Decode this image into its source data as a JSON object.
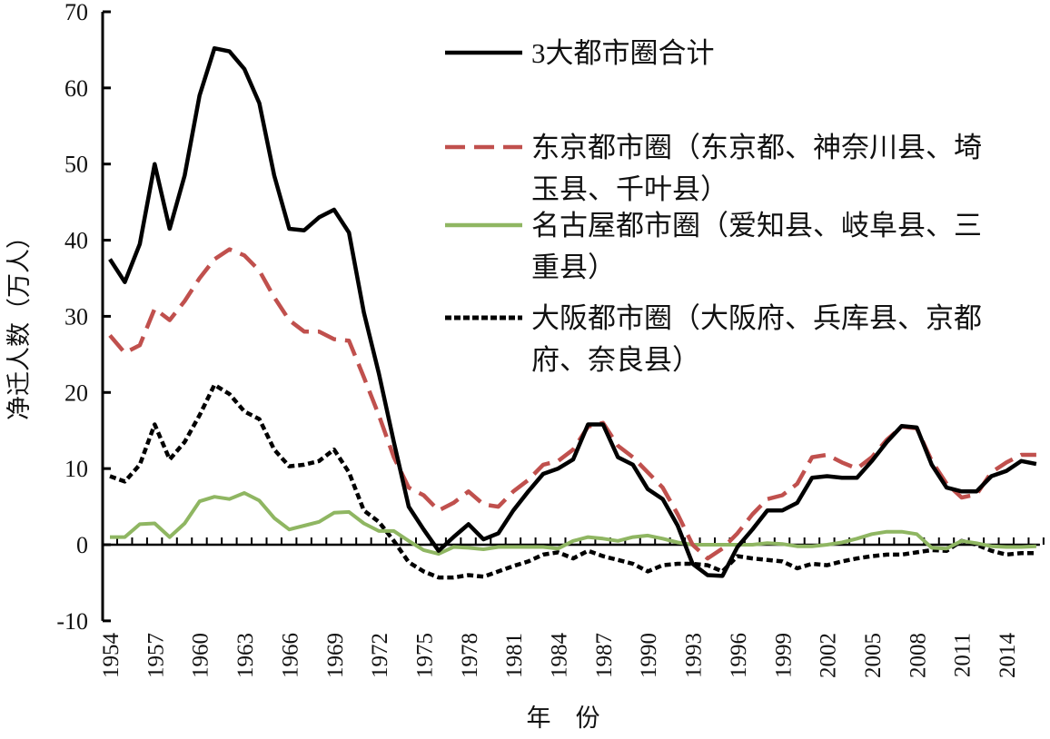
{
  "chart_data": {
    "type": "line",
    "xlabel": "年　份",
    "ylabel": "净迁人数（万人）",
    "ylim": [
      -10,
      70
    ],
    "yticks": [
      -10,
      0,
      10,
      20,
      30,
      40,
      50,
      60,
      70
    ],
    "ytick_labels": [
      "-10",
      "0",
      "10",
      "20",
      "30",
      "40",
      "50",
      "60",
      "70"
    ],
    "xlim": [
      1954,
      2016
    ],
    "xtick_labels": [
      "1954",
      "1957",
      "1960",
      "1963",
      "1966",
      "1969",
      "1972",
      "1975",
      "1978",
      "1981",
      "1984",
      "1987",
      "1990",
      "1993",
      "1996",
      "1999",
      "2002",
      "2005",
      "2008",
      "2011",
      "2014"
    ],
    "grid": false,
    "legend_position": "top-right",
    "x_start": 1954,
    "series": [
      {
        "name": "3大都市圈合计",
        "color": "#000000",
        "style": "solid",
        "values": [
          37.5,
          34.5,
          39.5,
          50,
          41.5,
          48.5,
          59,
          65.2,
          64.8,
          62.5,
          58,
          48.5,
          41.5,
          41.3,
          43,
          44,
          41,
          30.5,
          22.5,
          13.5,
          5,
          2,
          -0.8,
          1,
          2.7,
          0.7,
          1.5,
          4.5,
          7,
          9.3,
          10,
          11.2,
          15.8,
          15.8,
          11.5,
          10.5,
          7.3,
          6,
          2.5,
          -2.5,
          -4,
          -4.1,
          -0.3,
          2,
          4.5,
          4.5,
          5.5,
          8.8,
          9,
          8.8,
          8.8,
          11,
          13.5,
          15.6,
          15.4,
          10.5,
          7.5,
          7,
          7,
          9,
          9.7,
          11,
          10.6
        ]
      },
      {
        "name": "东京都市圈（东京都、神奈川县、埼玉县、千叶县）",
        "legend_lines": [
          "东京都市圈（东京都、神奈川县、埼",
          "玉县、千叶县）"
        ],
        "color": "#c0504d",
        "style": "dashed",
        "values": [
          27.5,
          25.2,
          26.2,
          31,
          29.5,
          32,
          35,
          37.5,
          38.8,
          38,
          36,
          32.5,
          29.5,
          28,
          28,
          27,
          26.8,
          22,
          17,
          11.5,
          7.5,
          6.5,
          4.5,
          5.5,
          7,
          5.3,
          5,
          7,
          8.5,
          10.5,
          11,
          12.5,
          15.5,
          16,
          13,
          11.5,
          9.5,
          7.5,
          4,
          0,
          -1.8,
          -0.5,
          1.5,
          4,
          6,
          6.5,
          8,
          11.5,
          11.8,
          10.8,
          10,
          11.5,
          13.8,
          15.5,
          15.3,
          11,
          8,
          6.2,
          6.6,
          9.5,
          10.8,
          11.8,
          11.8
        ]
      },
      {
        "name": "名古屋都市圈（爱知县、岐阜县、三重县）",
        "legend_lines": [
          "名古屋都市圈（爱知县、岐阜县、三",
          "重县）"
        ],
        "color": "#8fb662",
        "style": "solid",
        "values": [
          1,
          1,
          2.7,
          2.8,
          1,
          2.8,
          5.7,
          6.3,
          6,
          6.8,
          5.8,
          3.5,
          2,
          2.5,
          3,
          4.2,
          4.3,
          2.8,
          1.8,
          1.8,
          0.5,
          -0.7,
          -1.2,
          -0.3,
          -0.4,
          -0.6,
          -0.3,
          -0.3,
          -0.3,
          -0.3,
          -0.5,
          0.5,
          1,
          0.8,
          0.5,
          1,
          1.2,
          0.8,
          0.3,
          0,
          0,
          0,
          0,
          0,
          0.2,
          0.1,
          -0.2,
          -0.2,
          0,
          0.3,
          0.8,
          1.4,
          1.7,
          1.7,
          1.4,
          -0.4,
          -0.5,
          0.5,
          0.2,
          -0.2,
          -0.3,
          -0.3,
          -0.2
        ]
      },
      {
        "name": "大阪都市圈（大阪府、兵库县、京都府、奈良县）",
        "legend_lines": [
          "大阪都市圈（大阪府、兵库县、京都",
          "府、奈良县）"
        ],
        "color": "#000000",
        "style": "dotted",
        "values": [
          9,
          8.3,
          10.5,
          15.8,
          11.2,
          13.5,
          17,
          21,
          19.8,
          17.5,
          16.5,
          12.5,
          10.3,
          10.5,
          11,
          12.5,
          9.5,
          4.5,
          3,
          0.5,
          -2.3,
          -3.5,
          -4.3,
          -4.3,
          -4,
          -4.2,
          -3.5,
          -2.8,
          -2.2,
          -1.3,
          -1,
          -1.8,
          -0.8,
          -1.5,
          -2,
          -2.5,
          -3.5,
          -2.7,
          -2.5,
          -2.5,
          -2.7,
          -3.5,
          -1.5,
          -1.8,
          -2,
          -2.2,
          -3.1,
          -2.5,
          -2.7,
          -2.2,
          -1.8,
          -1.5,
          -1.3,
          -1.3,
          -1,
          -0.7,
          -0.8,
          0.5,
          0,
          -0.8,
          -1.3,
          -1.1,
          -1.1
        ]
      }
    ]
  }
}
